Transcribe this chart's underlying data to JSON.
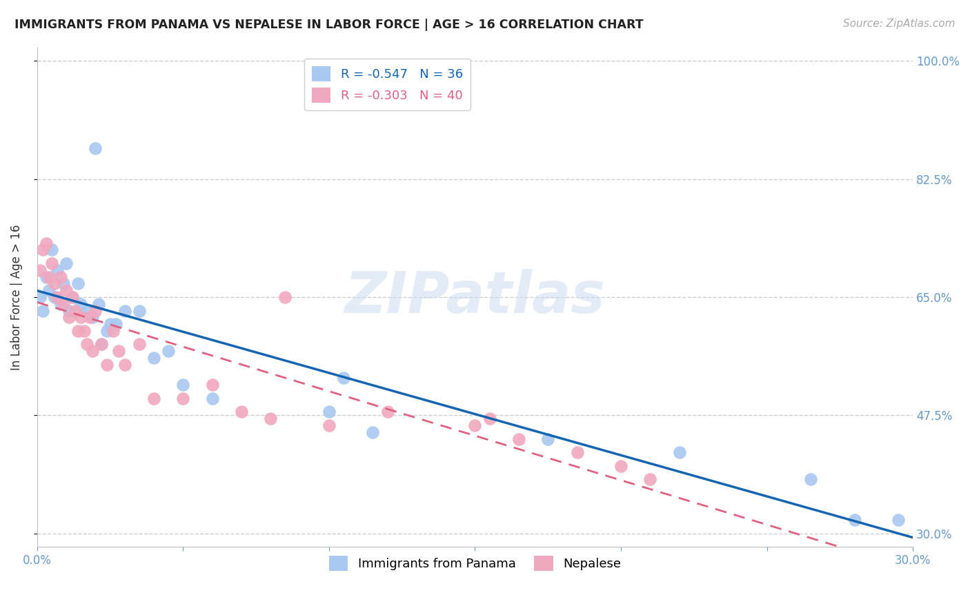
{
  "title": "IMMIGRANTS FROM PANAMA VS NEPALESE IN LABOR FORCE | AGE > 16 CORRELATION CHART",
  "source": "Source: ZipAtlas.com",
  "ylabel": "In Labor Force | Age > 16",
  "xlim": [
    0.0,
    0.3
  ],
  "ylim": [
    0.28,
    1.02
  ],
  "x_ticks": [
    0.0,
    0.05,
    0.1,
    0.15,
    0.2,
    0.25,
    0.3
  ],
  "x_tick_labels": [
    "0.0%",
    "",
    "",
    "",
    "",
    "",
    "30.0%"
  ],
  "y_ticks": [
    0.3,
    0.475,
    0.65,
    0.825,
    1.0
  ],
  "y_tick_labels": [
    "30.0%",
    "47.5%",
    "65.0%",
    "82.5%",
    "100.0%"
  ],
  "grid_color": "#cccccc",
  "watermark_text": "ZIPatlas",
  "legend_blue_r": "-0.547",
  "legend_blue_n": "36",
  "legend_pink_r": "-0.303",
  "legend_pink_n": "40",
  "blue_color": "#a8c8f0",
  "pink_color": "#f0a8be",
  "blue_line_color": "#1464b4",
  "pink_line_color": "#e06080",
  "blue_scatter_x": [
    0.001,
    0.002,
    0.003,
    0.004,
    0.005,
    0.006,
    0.007,
    0.008,
    0.009,
    0.01,
    0.011,
    0.012,
    0.014,
    0.015,
    0.017,
    0.019,
    0.021,
    0.024,
    0.027,
    0.03,
    0.02,
    0.022,
    0.025,
    0.035,
    0.04,
    0.045,
    0.05,
    0.06,
    0.1,
    0.105,
    0.115,
    0.175,
    0.22,
    0.265,
    0.28,
    0.295
  ],
  "blue_scatter_y": [
    0.65,
    0.63,
    0.68,
    0.66,
    0.72,
    0.65,
    0.69,
    0.64,
    0.67,
    0.7,
    0.63,
    0.65,
    0.67,
    0.64,
    0.63,
    0.62,
    0.64,
    0.6,
    0.61,
    0.63,
    0.87,
    0.58,
    0.61,
    0.63,
    0.56,
    0.57,
    0.52,
    0.5,
    0.48,
    0.53,
    0.45,
    0.44,
    0.42,
    0.38,
    0.32,
    0.32
  ],
  "pink_scatter_x": [
    0.001,
    0.002,
    0.003,
    0.004,
    0.005,
    0.006,
    0.007,
    0.008,
    0.009,
    0.01,
    0.011,
    0.012,
    0.013,
    0.014,
    0.015,
    0.016,
    0.017,
    0.018,
    0.019,
    0.02,
    0.022,
    0.024,
    0.026,
    0.028,
    0.03,
    0.035,
    0.04,
    0.05,
    0.06,
    0.07,
    0.08,
    0.085,
    0.1,
    0.12,
    0.15,
    0.155,
    0.165,
    0.185,
    0.2,
    0.21
  ],
  "pink_scatter_y": [
    0.69,
    0.72,
    0.73,
    0.68,
    0.7,
    0.67,
    0.65,
    0.68,
    0.64,
    0.66,
    0.62,
    0.65,
    0.63,
    0.6,
    0.62,
    0.6,
    0.58,
    0.62,
    0.57,
    0.63,
    0.58,
    0.55,
    0.6,
    0.57,
    0.55,
    0.58,
    0.5,
    0.5,
    0.52,
    0.48,
    0.47,
    0.65,
    0.46,
    0.48,
    0.46,
    0.47,
    0.44,
    0.42,
    0.4,
    0.38
  ]
}
